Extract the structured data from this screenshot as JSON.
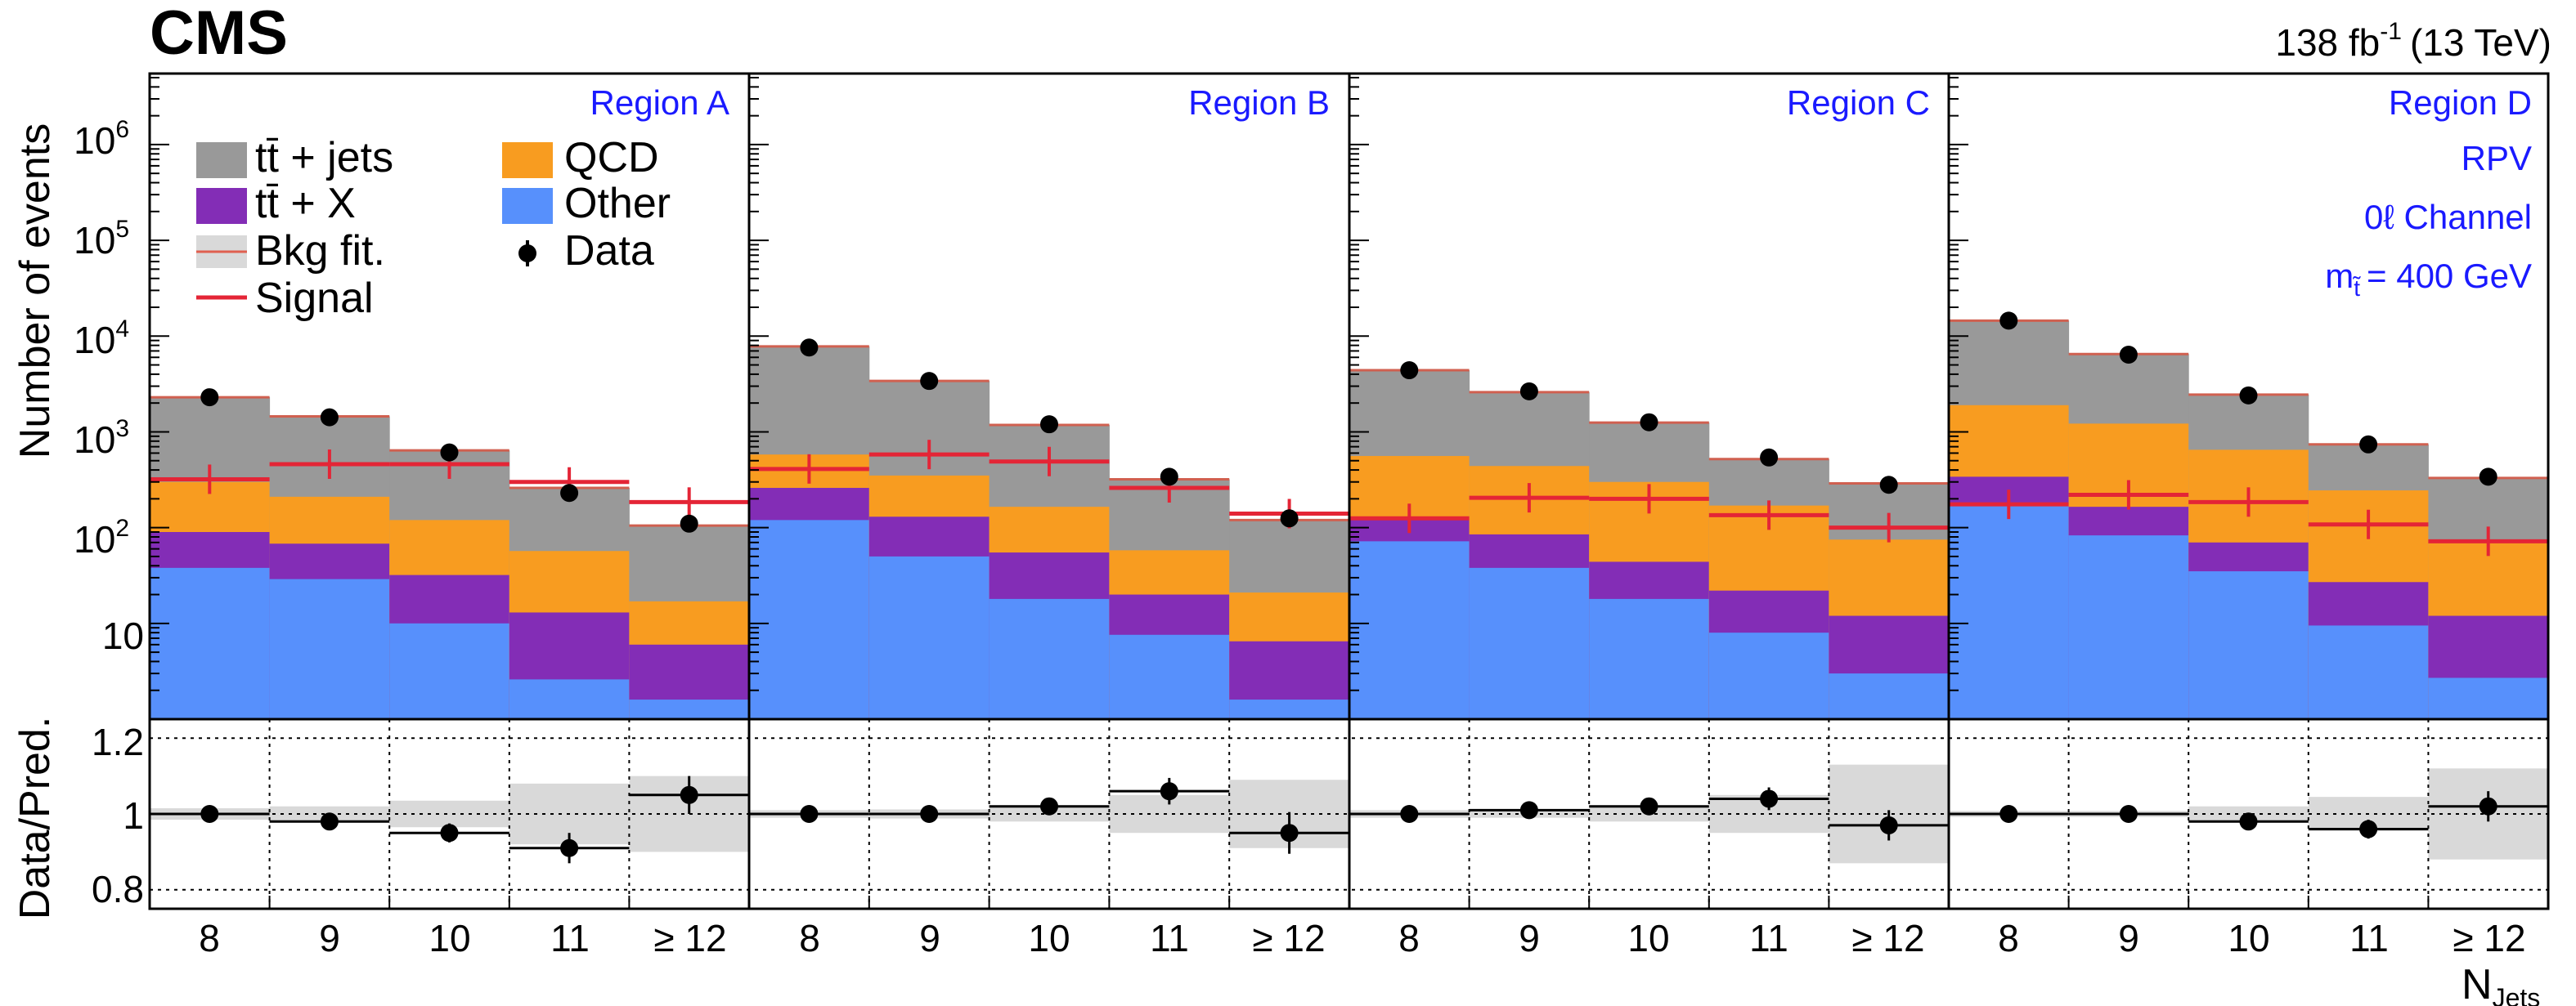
{
  "header": {
    "experiment": "CMS",
    "lumi": "138 fb",
    "lumi_exp": "-1",
    "energy": "(13 TeV)"
  },
  "axes": {
    "ylabel_top": "Number of events",
    "ylabel_bottom": "Data/Pred.",
    "xlabel": "N",
    "xlabel_sub": "Jets",
    "y_ticks": [
      {
        "base": "10",
        "exp": "6"
      },
      {
        "base": "10",
        "exp": "5"
      },
      {
        "base": "10",
        "exp": "4"
      },
      {
        "base": "10",
        "exp": "3"
      },
      {
        "base": "10",
        "exp": "2"
      },
      {
        "base": "10",
        "exp": ""
      }
    ],
    "ratio_ticks": [
      "1.2",
      "1",
      "0.8"
    ],
    "x_ticks": [
      "8",
      "9",
      "10",
      "11",
      "≥ 12"
    ]
  },
  "legend": {
    "ttjets": "tt̄ + jets",
    "ttx": "tt̄ + X",
    "bkgfit": "Bkg fit.",
    "signal": "Signal",
    "qcd": "QCD",
    "other": "Other",
    "data": "Data"
  },
  "annotations": {
    "rpv": "RPV",
    "channel": "0ℓ Channel",
    "mass_m": "m",
    "mass_sub": "t̃",
    "mass_value": "= 400 GeV"
  },
  "colors": {
    "ttjets": "#999999",
    "ttx": "#832db6",
    "qcd": "#f89c20",
    "other": "#5790fc",
    "signal": "#e42536",
    "bkgfit_band": "#d9d9d9",
    "region_label": "#1a1aff"
  },
  "chart_data": {
    "type": "bar",
    "stacked": true,
    "y_scale": "log",
    "ylim": [
      1,
      5000000
    ],
    "ratio_ylim": [
      0.75,
      1.25
    ],
    "categories": [
      "8",
      "9",
      "10",
      "11",
      "≥ 12"
    ],
    "stack_order": [
      "Other",
      "tt̄ + X",
      "QCD",
      "tt̄ + jets"
    ],
    "regions": [
      {
        "name": "Region A",
        "series": {
          "Other": [
            38,
            29,
            10,
            2.6,
            1.6
          ],
          "tt̄ + X": [
            90,
            68,
            32,
            13,
            6
          ],
          "QCD": [
            300,
            210,
            120,
            57,
            17
          ],
          "tt̄ + jets": [
            2300,
            1450,
            640,
            260,
            105
          ]
        },
        "data": [
          2300,
          1420,
          610,
          230,
          110
        ],
        "signal": [
          320,
          460,
          460,
          300,
          185
        ],
        "ratio": [
          1.0,
          0.98,
          0.95,
          0.91,
          1.05
        ],
        "ratio_err": [
          0.012,
          0.015,
          0.025,
          0.04,
          0.05
        ],
        "band": [
          0.015,
          0.02,
          0.035,
          0.08,
          0.1
        ]
      },
      {
        "name": "Region B",
        "series": {
          "Other": [
            120,
            50,
            18,
            7.6,
            1.6
          ],
          "tt̄ + X": [
            260,
            130,
            55,
            20,
            6.5
          ],
          "QCD": [
            580,
            350,
            165,
            58,
            21
          ],
          "tt̄ + jets": [
            7800,
            3400,
            1180,
            320,
            120
          ]
        },
        "data": [
          7600,
          3400,
          1200,
          340,
          125
        ],
        "signal": [
          410,
          580,
          490,
          260,
          140
        ],
        "ratio": [
          1.0,
          1.0,
          1.02,
          1.06,
          0.95
        ],
        "ratio_err": [
          0.008,
          0.01,
          0.02,
          0.035,
          0.055
        ],
        "band": [
          0.01,
          0.012,
          0.02,
          0.05,
          0.09
        ]
      },
      {
        "name": "Region C",
        "series": {
          "Other": [
            72,
            38,
            18,
            8,
            3
          ],
          "tt̄ + X": [
            130,
            85,
            44,
            22,
            12
          ],
          "QCD": [
            560,
            440,
            300,
            170,
            75
          ],
          "tt̄ + jets": [
            4400,
            2600,
            1250,
            520,
            290
          ]
        },
        "data": [
          4400,
          2650,
          1260,
          540,
          280
        ],
        "signal": [
          125,
          205,
          200,
          135,
          100
        ],
        "ratio": [
          1.0,
          1.01,
          1.02,
          1.04,
          0.97
        ],
        "ratio_err": [
          0.01,
          0.012,
          0.02,
          0.03,
          0.04
        ],
        "band": [
          0.01,
          0.01,
          0.02,
          0.05,
          0.13
        ]
      },
      {
        "name": "Region D",
        "series": {
          "Other": [
            175,
            83,
            35,
            9.5,
            2.7
          ],
          "tt̄ + X": [
            340,
            165,
            70,
            27,
            12
          ],
          "QCD": [
            1900,
            1220,
            650,
            245,
            75
          ],
          "tt̄ + jets": [
            14500,
            6500,
            2450,
            740,
            330
          ]
        },
        "data": [
          14500,
          6400,
          2400,
          740,
          340
        ],
        "signal": [
          175,
          220,
          185,
          108,
          72
        ],
        "ratio": [
          1.0,
          1.0,
          0.98,
          0.96,
          1.02
        ],
        "ratio_err": [
          0.008,
          0.01,
          0.012,
          0.025,
          0.04
        ],
        "band": [
          0.008,
          0.008,
          0.02,
          0.045,
          0.12
        ]
      }
    ]
  }
}
